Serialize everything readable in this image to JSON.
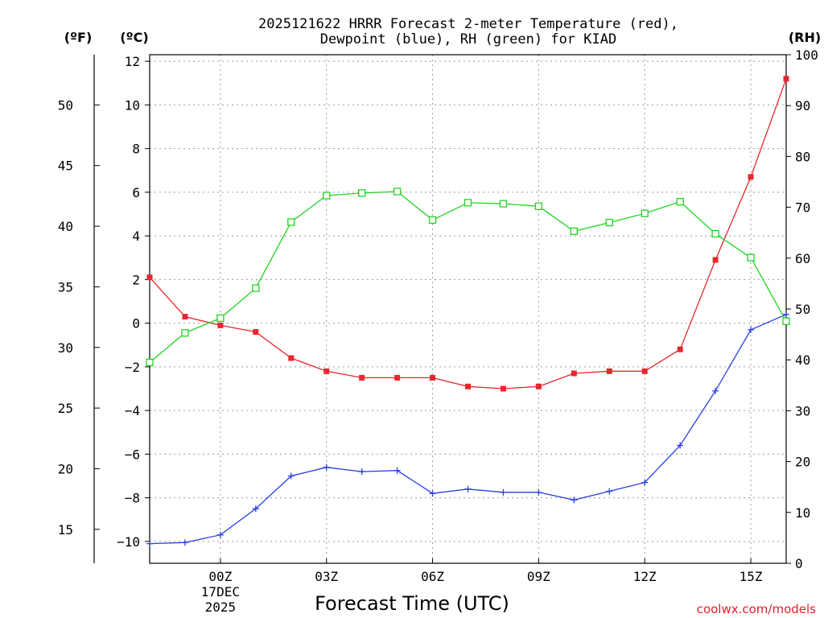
{
  "chart_data": {
    "type": "line",
    "title_line1": "2025121622 HRRR Forecast 2-meter Temperature (red),",
    "title_line2": "Dewpoint (blue), RH (green) for KIAD",
    "unit_f": "(ºF)",
    "unit_c": "(ºC)",
    "unit_rh": "(RH)",
    "xlabel": "Forecast Time (UTC)",
    "credit": "coolwx.com/models",
    "x_hours": [
      -2,
      -1,
      0,
      1,
      2,
      3,
      4,
      5,
      6,
      7,
      8,
      9,
      10,
      11,
      12,
      13,
      14,
      15,
      16
    ],
    "x_range": [
      -2,
      16
    ],
    "x_ticks": [
      {
        "hour": 0,
        "label": "00Z",
        "sub1": "17DEC",
        "sub2": "2025"
      },
      {
        "hour": 3,
        "label": "03Z",
        "sub1": "",
        "sub2": ""
      },
      {
        "hour": 6,
        "label": "06Z",
        "sub1": "",
        "sub2": ""
      },
      {
        "hour": 9,
        "label": "09Z",
        "sub1": "",
        "sub2": ""
      },
      {
        "hour": 12,
        "label": "12Z",
        "sub1": "",
        "sub2": ""
      },
      {
        "hour": 15,
        "label": "15Z",
        "sub1": "",
        "sub2": ""
      }
    ],
    "c_range": [
      -11,
      12.3
    ],
    "c_ticks": [
      12,
      10,
      8,
      6,
      4,
      2,
      0,
      -2,
      -4,
      -6,
      -8,
      -10
    ],
    "c_tick_labels": [
      "12",
      "10",
      "8",
      "6",
      "4",
      "2",
      "0",
      "−2",
      "−4",
      "−6",
      "−8",
      "−10"
    ],
    "f_ticks": [
      "50",
      "45",
      "40",
      "35",
      "30",
      "25",
      "20",
      "15"
    ],
    "rh_range": [
      0,
      100
    ],
    "rh_ticks": [
      "100",
      "90",
      "80",
      "70",
      "60",
      "50",
      "40",
      "30",
      "20",
      "10",
      "0"
    ],
    "series": [
      {
        "name": "Temperature",
        "color": "#e8262f",
        "marker": "filled-square",
        "values": [
          2.1,
          0.3,
          -0.1,
          -0.4,
          -1.6,
          -2.2,
          -2.5,
          -2.5,
          -2.5,
          -2.9,
          -3.0,
          -2.9,
          -2.3,
          -2.2,
          -2.2,
          -1.2,
          2.9,
          6.7,
          11.2
        ]
      },
      {
        "name": "Dewpoint",
        "color": "#2a3fe0",
        "marker": "plus",
        "values": [
          -10.1,
          -10.05,
          -9.7,
          -8.5,
          -7.0,
          -6.6,
          -6.8,
          -6.75,
          -7.8,
          -7.6,
          -7.75,
          -7.75,
          -8.1,
          -7.7,
          -7.3,
          -5.6,
          -3.1,
          -0.3,
          0.4
        ]
      },
      {
        "name": "RH",
        "color": "#22d422",
        "marker": "open-square",
        "axis": "rh",
        "values": [
          39.5,
          45.3,
          48.2,
          54.1,
          67.1,
          72.3,
          72.8,
          73.1,
          67.5,
          70.9,
          70.7,
          70.2,
          65.3,
          67.0,
          68.8,
          71.1,
          64.8,
          60.1,
          47.6
        ]
      }
    ]
  }
}
